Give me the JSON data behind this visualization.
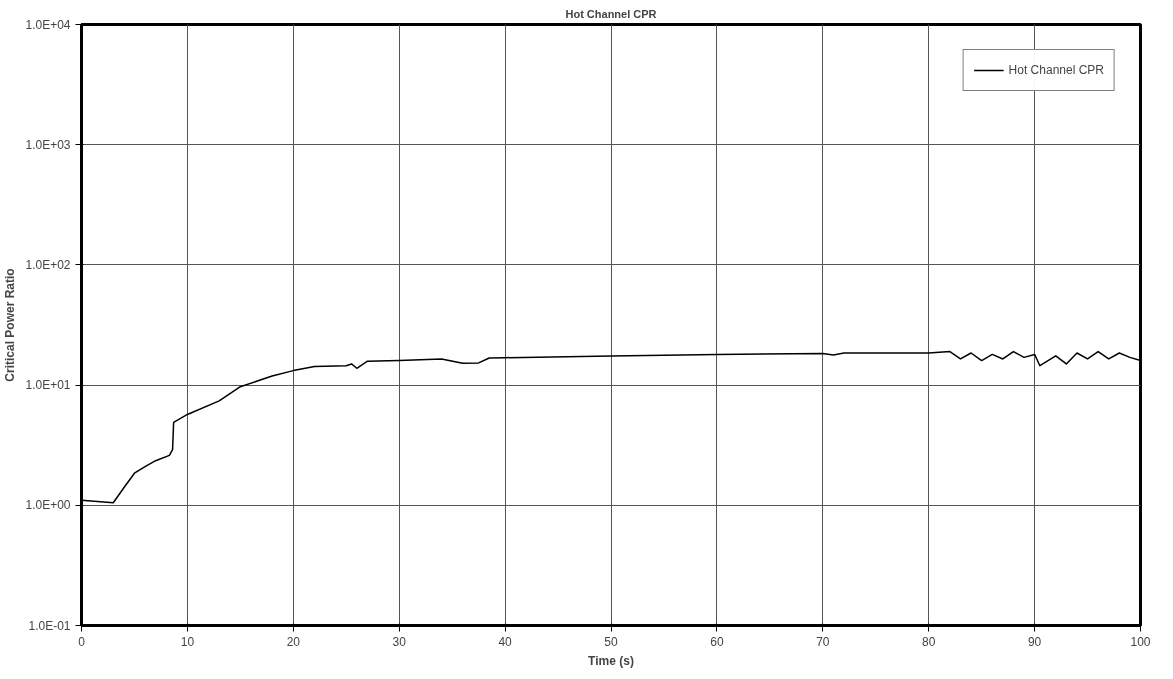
{
  "chart_data": {
    "type": "line",
    "title": "Hot Channel CPR",
    "xlabel": "Time (s)",
    "ylabel": "Critical Power Ratio",
    "x": [
      0,
      3,
      4,
      5,
      6,
      7,
      8.3,
      8.6,
      8.7,
      10,
      13,
      15,
      18,
      20,
      22,
      25,
      25.5,
      26,
      27,
      30,
      34,
      36,
      37.5,
      38.5,
      40,
      50,
      60,
      70,
      71,
      72,
      75,
      80,
      82,
      83,
      84,
      85,
      86,
      87,
      88,
      89,
      90,
      90.5,
      92,
      93,
      94,
      95,
      96,
      97,
      98,
      99,
      100
    ],
    "series": [
      {
        "name": "Hot Channel CPR",
        "color": "#000000",
        "values": [
          1.1,
          1.05,
          1.4,
          1.85,
          2.1,
          2.35,
          2.6,
          2.9,
          4.9,
          5.7,
          7.4,
          9.7,
          11.9,
          13.2,
          14.3,
          14.5,
          15,
          13.8,
          15.8,
          16,
          16.5,
          15.2,
          15.3,
          16.8,
          16.9,
          17.5,
          18,
          18.3,
          17.8,
          18.5,
          18.5,
          18.5,
          19,
          16.5,
          18.5,
          16,
          18,
          16.5,
          19,
          17,
          18,
          14.5,
          17.5,
          15,
          18.5,
          16.5,
          19,
          16.5,
          18.5,
          17,
          16
        ]
      }
    ],
    "xlim": [
      0,
      100
    ],
    "xticks": [
      0,
      10,
      20,
      30,
      40,
      50,
      60,
      70,
      80,
      90,
      100
    ],
    "ylim": [
      0.1,
      10000
    ],
    "yticks": [
      {
        "value": 0.1,
        "label": "1.0E-01"
      },
      {
        "value": 1,
        "label": "1.0E+00"
      },
      {
        "value": 10,
        "label": "1.0E+01"
      },
      {
        "value": 100,
        "label": "1.0E+02"
      },
      {
        "value": 1000,
        "label": "1.0E+03"
      },
      {
        "value": 10000,
        "label": "1.0E+04"
      }
    ],
    "log": "y",
    "grid": true,
    "legend": "top right",
    "line_style": "solid",
    "marker": "none"
  }
}
